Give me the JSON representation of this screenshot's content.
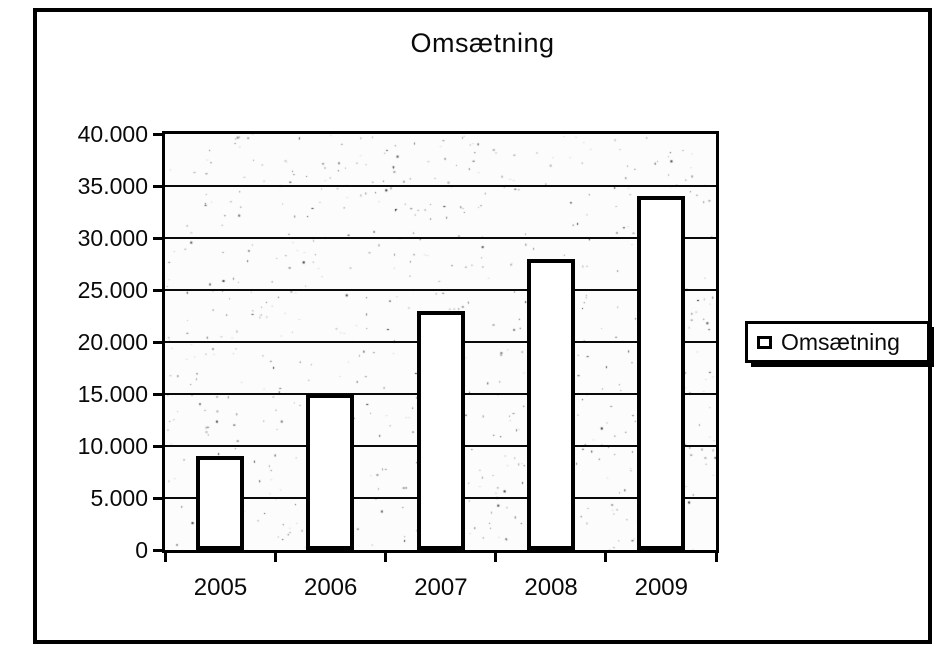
{
  "chart_data": {
    "type": "bar",
    "title": "Omsætning",
    "categories": [
      "2005",
      "2006",
      "2007",
      "2008",
      "2009"
    ],
    "series": [
      {
        "name": "Omsætning",
        "values": [
          9000,
          15000,
          23000,
          28000,
          34000
        ]
      }
    ],
    "xlabel": "",
    "ylabel": "",
    "ylim": [
      0,
      40000
    ],
    "ytick_step": 5000,
    "ytick_labels": [
      "0",
      "5.000",
      "10.000",
      "15.000",
      "20.000",
      "25.000",
      "30.000",
      "35.000",
      "40.000"
    ],
    "grid": true,
    "legend_position": "right",
    "legend_labels": [
      "Omsætning"
    ],
    "colors": {
      "bar_fill": "#ffffff",
      "bar_border": "#000000",
      "ink": "#0a0a0a",
      "background": "#ffffff"
    }
  }
}
